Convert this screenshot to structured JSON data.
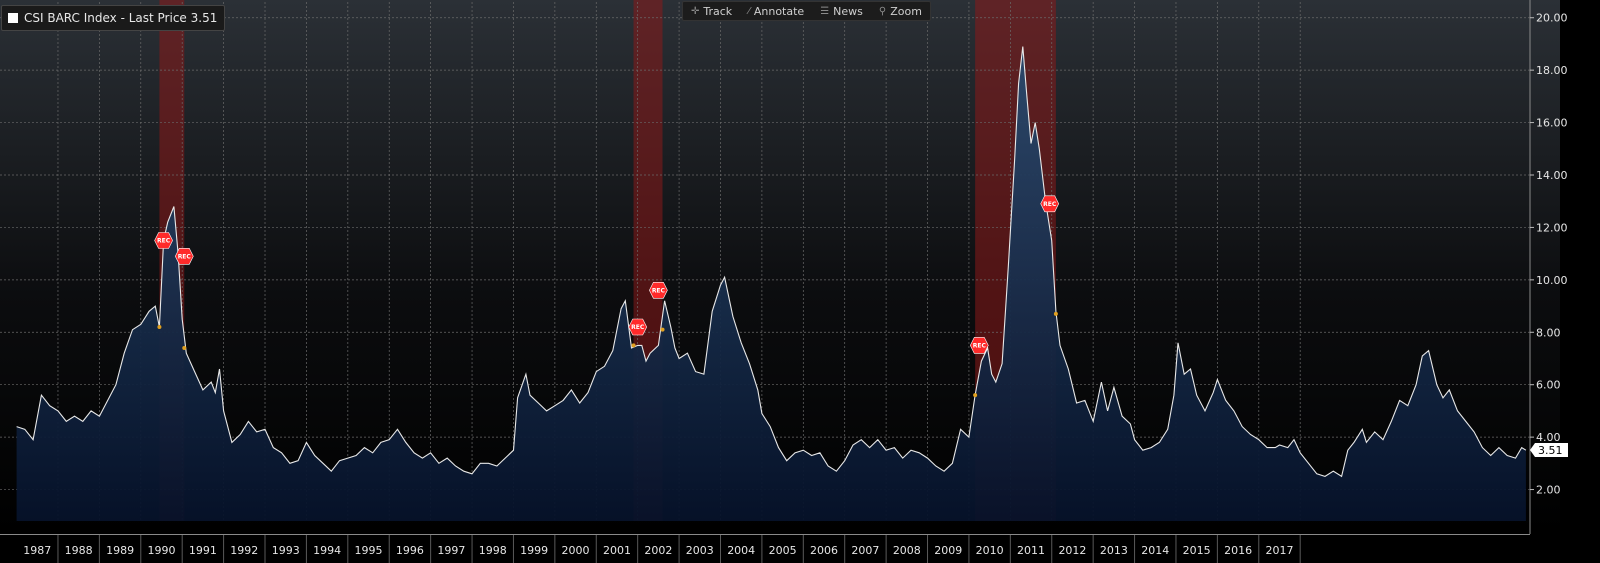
{
  "legend": {
    "label": "CSI BARC Index - Last Price 3.51"
  },
  "toolbar": {
    "items": [
      {
        "label": "Track",
        "icon": "crosshair-icon",
        "glyph": "✛"
      },
      {
        "label": "Annotate",
        "icon": "pencil-icon",
        "glyph": "⁄"
      },
      {
        "label": "News",
        "icon": "news-icon",
        "glyph": "☰"
      },
      {
        "label": "Zoom",
        "icon": "magnifier-icon",
        "glyph": "⚲"
      }
    ]
  },
  "colors": {
    "line": "#e8e8e8",
    "area_top": "#2a4a6e",
    "area_bottom": "#06122a",
    "recession": "#8b1a1a",
    "rec_marker": "#ff2a2a",
    "dot": "#e0a020",
    "grid": "#6a6a6a",
    "last_label_bg": "#ffffff"
  },
  "chart_data": {
    "type": "area",
    "series": [
      {
        "name": "CSI BARC Index",
        "points": [
          [
            1987.0,
            4.4
          ],
          [
            1987.2,
            4.3
          ],
          [
            1987.4,
            3.9
          ],
          [
            1987.6,
            5.6
          ],
          [
            1987.8,
            5.2
          ],
          [
            1988.0,
            5.0
          ],
          [
            1988.2,
            4.6
          ],
          [
            1988.4,
            4.8
          ],
          [
            1988.6,
            4.6
          ],
          [
            1988.8,
            5.0
          ],
          [
            1989.0,
            4.8
          ],
          [
            1989.2,
            5.4
          ],
          [
            1989.4,
            6.0
          ],
          [
            1989.6,
            7.2
          ],
          [
            1989.8,
            8.1
          ],
          [
            1990.0,
            8.3
          ],
          [
            1990.2,
            8.8
          ],
          [
            1990.35,
            9.0
          ],
          [
            1990.45,
            8.2
          ],
          [
            1990.55,
            11.5
          ],
          [
            1990.65,
            12.2
          ],
          [
            1990.8,
            12.8
          ],
          [
            1990.9,
            11.0
          ],
          [
            1991.0,
            8.5
          ],
          [
            1991.1,
            7.2
          ],
          [
            1991.3,
            6.5
          ],
          [
            1991.5,
            5.8
          ],
          [
            1991.7,
            6.1
          ],
          [
            1991.8,
            5.7
          ],
          [
            1991.9,
            6.6
          ],
          [
            1992.0,
            5.0
          ],
          [
            1992.2,
            3.8
          ],
          [
            1992.4,
            4.1
          ],
          [
            1992.6,
            4.6
          ],
          [
            1992.8,
            4.2
          ],
          [
            1993.0,
            4.3
          ],
          [
            1993.2,
            3.6
          ],
          [
            1993.4,
            3.4
          ],
          [
            1993.6,
            3.0
          ],
          [
            1993.8,
            3.1
          ],
          [
            1994.0,
            3.8
          ],
          [
            1994.2,
            3.3
          ],
          [
            1994.4,
            3.0
          ],
          [
            1994.6,
            2.7
          ],
          [
            1994.8,
            3.1
          ],
          [
            1995.0,
            3.2
          ],
          [
            1995.2,
            3.3
          ],
          [
            1995.4,
            3.6
          ],
          [
            1995.6,
            3.4
          ],
          [
            1995.8,
            3.8
          ],
          [
            1996.0,
            3.9
          ],
          [
            1996.2,
            4.3
          ],
          [
            1996.4,
            3.8
          ],
          [
            1996.6,
            3.4
          ],
          [
            1996.8,
            3.2
          ],
          [
            1997.0,
            3.4
          ],
          [
            1997.2,
            3.0
          ],
          [
            1997.4,
            3.2
          ],
          [
            1997.6,
            2.9
          ],
          [
            1997.8,
            2.7
          ],
          [
            1998.0,
            2.6
          ],
          [
            1998.2,
            3.0
          ],
          [
            1998.4,
            3.0
          ],
          [
            1998.6,
            2.9
          ],
          [
            1998.8,
            3.2
          ],
          [
            1999.0,
            3.5
          ],
          [
            1999.1,
            5.5
          ],
          [
            1999.3,
            6.4
          ],
          [
            1999.4,
            5.6
          ],
          [
            1999.6,
            5.3
          ],
          [
            1999.8,
            5.0
          ],
          [
            2000.0,
            5.2
          ],
          [
            2000.2,
            5.4
          ],
          [
            2000.4,
            5.8
          ],
          [
            2000.6,
            5.3
          ],
          [
            2000.8,
            5.7
          ],
          [
            2001.0,
            6.5
          ],
          [
            2001.2,
            6.7
          ],
          [
            2001.4,
            7.3
          ],
          [
            2001.6,
            8.9
          ],
          [
            2001.7,
            9.2
          ],
          [
            2001.85,
            7.4
          ],
          [
            2002.0,
            7.5
          ],
          [
            2002.1,
            7.5
          ],
          [
            2002.2,
            6.9
          ],
          [
            2002.3,
            7.2
          ],
          [
            2002.5,
            7.5
          ],
          [
            2002.65,
            9.2
          ],
          [
            2002.8,
            8.2
          ],
          [
            2002.9,
            7.4
          ],
          [
            2003.0,
            7.0
          ],
          [
            2003.2,
            7.2
          ],
          [
            2003.4,
            6.5
          ],
          [
            2003.6,
            6.4
          ],
          [
            2003.8,
            8.8
          ],
          [
            2004.0,
            9.8
          ],
          [
            2004.1,
            10.1
          ],
          [
            2004.3,
            8.6
          ],
          [
            2004.5,
            7.6
          ],
          [
            2004.7,
            6.8
          ],
          [
            2004.9,
            5.8
          ],
          [
            2005.0,
            4.9
          ],
          [
            2005.2,
            4.4
          ],
          [
            2005.4,
            3.6
          ],
          [
            2005.6,
            3.1
          ],
          [
            2005.8,
            3.4
          ],
          [
            2006.0,
            3.5
          ],
          [
            2006.2,
            3.3
          ],
          [
            2006.4,
            3.4
          ],
          [
            2006.6,
            2.9
          ],
          [
            2006.8,
            2.7
          ],
          [
            2007.0,
            3.1
          ],
          [
            2007.2,
            3.7
          ],
          [
            2007.4,
            3.9
          ],
          [
            2007.6,
            3.6
          ],
          [
            2007.8,
            3.9
          ],
          [
            2008.0,
            3.5
          ],
          [
            2008.2,
            3.6
          ],
          [
            2008.4,
            3.2
          ],
          [
            2008.6,
            3.5
          ],
          [
            2008.8,
            3.4
          ],
          [
            2009.0,
            3.2
          ],
          [
            2009.2,
            2.9
          ],
          [
            2009.4,
            2.7
          ],
          [
            2009.6,
            3.0
          ],
          [
            2009.8,
            4.3
          ],
          [
            2010.0,
            4.0
          ],
          [
            2010.15,
            5.6
          ],
          [
            2010.3,
            6.9
          ],
          [
            2010.45,
            7.4
          ],
          [
            2010.55,
            6.4
          ],
          [
            2010.65,
            6.1
          ],
          [
            2010.8,
            6.8
          ],
          [
            2010.95,
            10.5
          ],
          [
            2011.1,
            14.5
          ],
          [
            2011.2,
            17.5
          ],
          [
            2011.3,
            18.9
          ],
          [
            2011.4,
            17.0
          ],
          [
            2011.5,
            15.2
          ],
          [
            2011.6,
            16.0
          ],
          [
            2011.7,
            15.0
          ],
          [
            2011.85,
            13.0
          ],
          [
            2012.0,
            11.5
          ],
          [
            2012.1,
            8.8
          ],
          [
            2012.2,
            7.5
          ],
          [
            2012.4,
            6.6
          ],
          [
            2012.6,
            5.3
          ],
          [
            2012.8,
            5.4
          ],
          [
            2013.0,
            4.6
          ],
          [
            2013.2,
            6.1
          ],
          [
            2013.35,
            5.0
          ],
          [
            2013.5,
            5.9
          ],
          [
            2013.7,
            4.8
          ],
          [
            2013.9,
            4.5
          ],
          [
            2014.0,
            3.9
          ],
          [
            2014.2,
            3.5
          ],
          [
            2014.4,
            3.6
          ],
          [
            2014.6,
            3.8
          ],
          [
            2014.8,
            4.3
          ],
          [
            2014.95,
            5.6
          ],
          [
            2015.05,
            7.6
          ],
          [
            2015.2,
            6.4
          ],
          [
            2015.35,
            6.6
          ],
          [
            2015.5,
            5.6
          ],
          [
            2015.7,
            5.0
          ],
          [
            2015.9,
            5.7
          ],
          [
            2016.0,
            6.2
          ],
          [
            2016.2,
            5.4
          ],
          [
            2016.4,
            5.0
          ],
          [
            2016.6,
            4.4
          ],
          [
            2016.8,
            4.1
          ],
          [
            2017.0,
            3.9
          ],
          [
            2017.2,
            3.6
          ],
          [
            2017.4,
            3.6
          ],
          [
            2017.5,
            3.7
          ],
          [
            2017.7,
            3.6
          ],
          [
            2017.85,
            3.9
          ],
          [
            2018.0,
            3.4
          ],
          [
            2018.2,
            3.0
          ],
          [
            2018.4,
            2.6
          ],
          [
            2018.6,
            2.5
          ],
          [
            2018.8,
            2.7
          ],
          [
            2019.0,
            2.5
          ],
          [
            2019.15,
            3.5
          ],
          [
            2019.3,
            3.8
          ],
          [
            2019.5,
            4.3
          ],
          [
            2019.6,
            3.8
          ],
          [
            2019.8,
            4.2
          ],
          [
            2020.0,
            3.9
          ],
          [
            2020.2,
            4.6
          ],
          [
            2020.4,
            5.4
          ],
          [
            2020.6,
            5.2
          ],
          [
            2020.8,
            6.0
          ],
          [
            2020.95,
            7.1
          ],
          [
            2021.1,
            7.3
          ],
          [
            2021.3,
            6.0
          ],
          [
            2021.45,
            5.5
          ],
          [
            2021.6,
            5.8
          ],
          [
            2021.8,
            5.0
          ],
          [
            2022.0,
            4.6
          ],
          [
            2022.2,
            4.2
          ],
          [
            2022.4,
            3.6
          ],
          [
            2022.6,
            3.3
          ],
          [
            2022.8,
            3.6
          ],
          [
            2023.0,
            3.3
          ],
          [
            2023.2,
            3.2
          ],
          [
            2023.35,
            3.6
          ],
          [
            2023.45,
            3.5
          ]
        ]
      }
    ],
    "last_value": "3.51",
    "y_range": [
      0.8,
      20.6
    ],
    "y_ticks": [
      2,
      4,
      6,
      8,
      10,
      12,
      14,
      16,
      18,
      20
    ],
    "y_tick_labels": [
      "2.00",
      "4.00",
      "6.00",
      "8.00",
      "10.00",
      "12.00",
      "14.00",
      "16.00",
      "18.00",
      "20.00"
    ],
    "x_ticks": [
      "1987",
      "1988",
      "1989",
      "1990",
      "1991",
      "1992",
      "1993",
      "1994",
      "1995",
      "1996",
      "1997",
      "1998",
      "1999",
      "2000",
      "2001",
      "2002",
      "2003",
      "2004",
      "2005",
      "2006",
      "2007",
      "2008",
      "2009",
      "2010",
      "2011",
      "2012",
      "2013",
      "2014",
      "2015",
      "2016",
      "2017"
    ],
    "recessions": [
      {
        "start": 1990.45,
        "end": 1991.05,
        "start_value": 8.2,
        "end_value": 7.4
      },
      {
        "start": 2001.9,
        "end": 2002.6,
        "start_value": 7.5,
        "end_value": 8.1
      },
      {
        "start": 2010.15,
        "end": 2012.1,
        "start_value": 5.6,
        "end_value": 8.7
      }
    ],
    "rec_markers": [
      {
        "x": 1990.55,
        "y": 11.5,
        "label": "REC"
      },
      {
        "x": 1991.05,
        "y": 10.9,
        "label": "REC"
      },
      {
        "x": 2002.0,
        "y": 8.2,
        "label": "REC"
      },
      {
        "x": 2002.5,
        "y": 9.6,
        "label": "REC"
      },
      {
        "x": 2010.25,
        "y": 7.5,
        "label": "REC"
      },
      {
        "x": 2011.95,
        "y": 12.9,
        "label": "REC"
      }
    ],
    "grid": true,
    "legend_position": "top-left"
  }
}
